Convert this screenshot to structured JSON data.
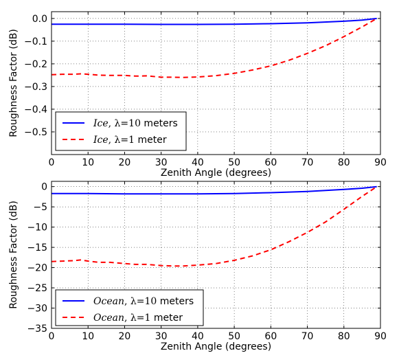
{
  "chart_data": [
    {
      "type": "line",
      "xlabel": "Zenith Angle (degrees)",
      "ylabel": "Roughness Factor (dB)",
      "xlim": [
        0,
        90
      ],
      "ylim": [
        -0.6,
        0.03
      ],
      "xticks": [
        "0",
        "10",
        "20",
        "30",
        "40",
        "50",
        "60",
        "70",
        "80",
        "90"
      ],
      "yticks": [
        "0.0",
        "−0.1",
        "−0.2",
        "−0.3",
        "−0.4",
        "−0.5"
      ],
      "grid": true,
      "legend_position": "lower-left",
      "series": [
        {
          "name_italic": "Ice",
          "name_rest": ", λ=10 meters",
          "color": "#0000ff",
          "style": "solid",
          "x": [
            0,
            10,
            20,
            30,
            40,
            50,
            60,
            70,
            80,
            85,
            89
          ],
          "values": [
            -0.025,
            -0.025,
            -0.025,
            -0.026,
            -0.026,
            -0.025,
            -0.023,
            -0.019,
            -0.012,
            -0.007,
            0.0
          ]
        },
        {
          "name_italic": "Ice",
          "name_rest": ", λ=1 meter",
          "color": "#ff0000",
          "style": "dashed",
          "x": [
            0,
            3,
            6,
            8,
            10,
            13,
            16,
            20,
            23,
            26,
            30,
            33,
            36,
            40,
            45,
            50,
            55,
            60,
            65,
            70,
            75,
            80,
            85,
            89
          ],
          "values": [
            -0.248,
            -0.246,
            -0.246,
            -0.244,
            -0.246,
            -0.25,
            -0.251,
            -0.251,
            -0.254,
            -0.253,
            -0.259,
            -0.259,
            -0.26,
            -0.258,
            -0.252,
            -0.242,
            -0.227,
            -0.209,
            -0.184,
            -0.154,
            -0.12,
            -0.08,
            -0.037,
            0.0
          ]
        }
      ]
    },
    {
      "type": "line",
      "xlabel": "Zenith Angle (degrees)",
      "ylabel": "Roughness Factor (dB)",
      "xlim": [
        0,
        90
      ],
      "ylim": [
        -35,
        1.3
      ],
      "xticks": [
        "0",
        "10",
        "20",
        "30",
        "40",
        "50",
        "60",
        "70",
        "80",
        "90"
      ],
      "yticks": [
        "0",
        "−5",
        "−10",
        "−15",
        "−20",
        "−25",
        "−30",
        "−35"
      ],
      "grid": true,
      "legend_position": "lower-left",
      "series": [
        {
          "name_italic": "Ocean",
          "name_rest": ", λ=10 meters",
          "color": "#0000ff",
          "style": "solid",
          "x": [
            0,
            10,
            20,
            30,
            40,
            50,
            60,
            70,
            80,
            85,
            89
          ],
          "values": [
            -1.7,
            -1.7,
            -1.8,
            -1.8,
            -1.8,
            -1.7,
            -1.5,
            -1.2,
            -0.7,
            -0.4,
            0.0
          ]
        },
        {
          "name_italic": "Ocean",
          "name_rest": ", λ=1 meter",
          "color": "#ff0000",
          "style": "dashed",
          "x": [
            0,
            3,
            6,
            8,
            10,
            13,
            16,
            20,
            23,
            26,
            30,
            33,
            36,
            40,
            45,
            50,
            55,
            60,
            65,
            70,
            75,
            80,
            85,
            89
          ],
          "values": [
            -18.5,
            -18.4,
            -18.3,
            -18.1,
            -18.4,
            -18.7,
            -18.7,
            -19.0,
            -19.2,
            -19.2,
            -19.5,
            -19.6,
            -19.6,
            -19.4,
            -19.0,
            -18.2,
            -17.1,
            -15.6,
            -13.6,
            -11.3,
            -8.7,
            -5.6,
            -2.4,
            0.0
          ]
        }
      ]
    }
  ]
}
